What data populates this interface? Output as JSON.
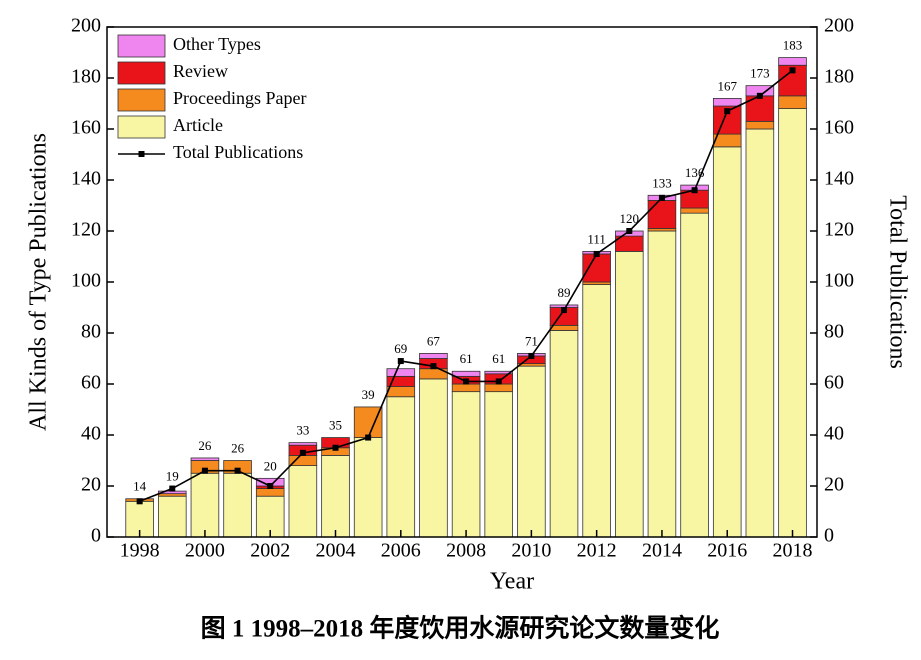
{
  "chart_data": {
    "type": "bar",
    "stacked": true,
    "x": [
      1998,
      1999,
      2000,
      2001,
      2002,
      2003,
      2004,
      2005,
      2006,
      2007,
      2008,
      2009,
      2010,
      2011,
      2012,
      2013,
      2014,
      2015,
      2016,
      2017,
      2018
    ],
    "xlim": [
      1997,
      2018.75
    ],
    "xticks": [
      1998,
      2000,
      2002,
      2004,
      2006,
      2008,
      2010,
      2012,
      2014,
      2016,
      2018
    ],
    "ylim": [
      0,
      200
    ],
    "yticks": [
      0,
      20,
      40,
      60,
      80,
      100,
      120,
      140,
      160,
      180,
      200
    ],
    "y2lim": [
      0,
      200
    ],
    "y2ticks": [
      0,
      20,
      40,
      60,
      80,
      100,
      120,
      140,
      160,
      180,
      200
    ],
    "xlabel": "Year",
    "ylabel": "All Kinds of Type Publications",
    "y2label": "Total Publications",
    "caption": "图 1  1998–2018 年度饮用水源研究论文数量变化",
    "legend": "upper left",
    "series": [
      {
        "name": "Article",
        "color": "#f9f6a3",
        "values": [
          14,
          16,
          25,
          25,
          16,
          28,
          32,
          39,
          55,
          62,
          57,
          57,
          67,
          81,
          99,
          112,
          120,
          127,
          153,
          160,
          168
        ]
      },
      {
        "name": "Proceedings Paper",
        "color": "#f58a1f",
        "values": [
          1,
          1,
          5,
          5,
          3,
          4,
          3,
          12,
          4,
          4,
          3,
          3,
          1,
          2,
          1,
          0,
          1,
          2,
          5,
          3,
          5
        ]
      },
      {
        "name": "Review",
        "color": "#e8141a",
        "values": [
          0,
          0,
          0,
          0,
          1,
          4,
          4,
          0,
          4,
          4,
          3,
          4,
          3,
          7,
          11,
          6,
          11,
          7,
          11,
          10,
          12
        ]
      },
      {
        "name": "Other Types",
        "color": "#ef85ef",
        "values": [
          0,
          1,
          1,
          0,
          3,
          1,
          0,
          0,
          3,
          2,
          2,
          1,
          1,
          1,
          1,
          2,
          2,
          2,
          3,
          4,
          3
        ]
      },
      {
        "name": "Total Publications",
        "color": "#000000",
        "type": "line",
        "axis": "y2",
        "values": [
          14,
          19,
          26,
          26,
          20,
          33,
          35,
          39,
          69,
          67,
          61,
          61,
          71,
          89,
          111,
          120,
          133,
          136,
          167,
          173,
          183
        ]
      }
    ]
  }
}
